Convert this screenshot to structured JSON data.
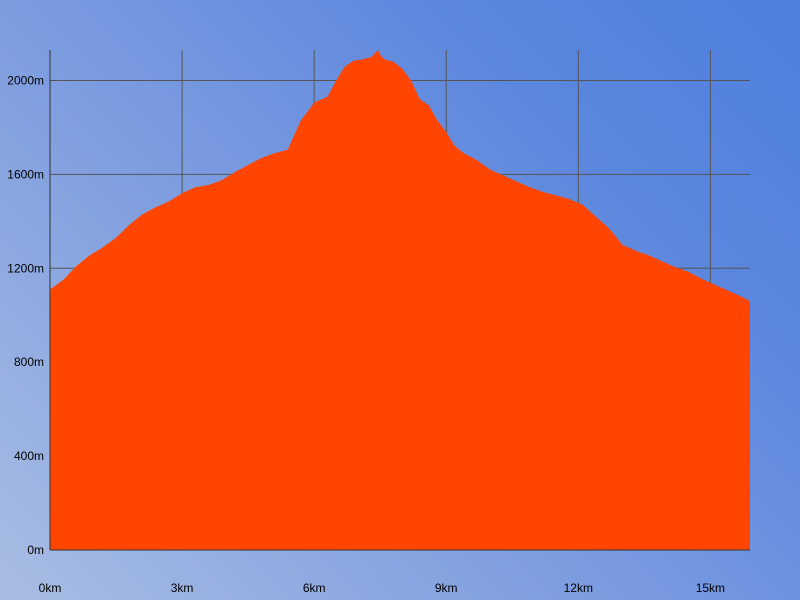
{
  "chart_data": {
    "type": "area",
    "title": "",
    "xlabel": "",
    "ylabel": "",
    "x_unit": "km",
    "y_unit": "m",
    "xlim": [
      0,
      15.9
    ],
    "ylim": [
      0,
      2130
    ],
    "x_ticks": [
      0,
      3,
      6,
      9,
      12,
      15
    ],
    "y_ticks": [
      0,
      400,
      800,
      1200,
      1600,
      2000
    ],
    "x_tick_labels": [
      "0km",
      "3km",
      "6km",
      "9km",
      "12km",
      "15km"
    ],
    "y_tick_labels": [
      "0m",
      "400m",
      "800m",
      "1200m",
      "1600m",
      "2000m"
    ],
    "grid": true,
    "colors": {
      "fill": "#ff4500",
      "grid": "#555555",
      "axis": "#333333"
    },
    "series": [
      {
        "x": [
          0,
          0.3,
          0.6,
          0.9,
          1.2,
          1.5,
          1.8,
          2.1,
          2.4,
          2.7,
          3.0,
          3.3,
          3.6,
          3.9,
          4.2,
          4.5,
          4.8,
          5.1,
          5.4,
          5.7,
          5.9,
          6.0,
          6.1,
          6.3,
          6.5,
          6.7,
          6.9,
          7.1,
          7.3,
          7.45,
          7.5,
          7.6,
          7.8,
          8.0,
          8.2,
          8.4,
          8.6,
          8.8,
          9.0,
          9.2,
          9.4,
          9.7,
          10.0,
          10.3,
          10.6,
          10.9,
          11.2,
          11.5,
          11.8,
          12.1,
          12.4,
          12.7,
          13.0,
          13.3,
          13.6,
          13.9,
          14.2,
          14.5,
          14.8,
          15.1,
          15.4,
          15.7,
          15.9
        ],
        "y": [
          1110,
          1150,
          1210,
          1255,
          1290,
          1330,
          1385,
          1430,
          1460,
          1485,
          1520,
          1545,
          1555,
          1575,
          1610,
          1640,
          1670,
          1690,
          1705,
          1830,
          1880,
          1905,
          1915,
          1930,
          2000,
          2060,
          2085,
          2090,
          2100,
          2130,
          2110,
          2090,
          2080,
          2050,
          2000,
          1920,
          1895,
          1830,
          1780,
          1720,
          1690,
          1660,
          1620,
          1595,
          1570,
          1545,
          1525,
          1510,
          1495,
          1470,
          1420,
          1370,
          1300,
          1275,
          1255,
          1230,
          1205,
          1185,
          1155,
          1130,
          1105,
          1080,
          1060
        ]
      }
    ]
  }
}
